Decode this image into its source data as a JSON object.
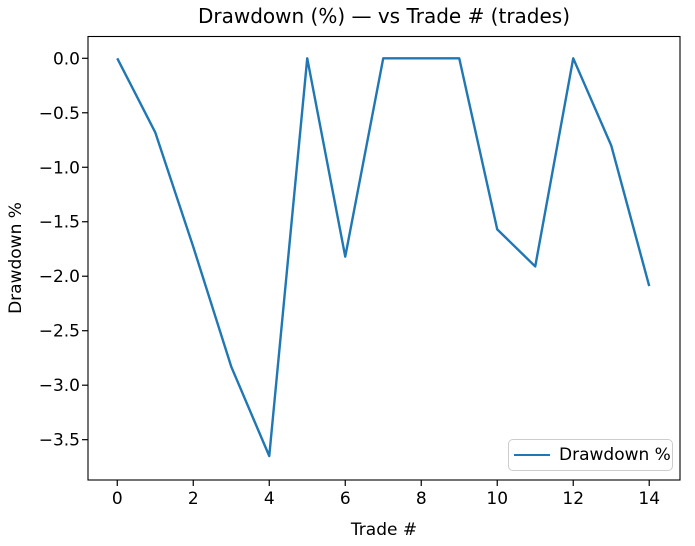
{
  "chart_data": {
    "type": "line",
    "title": "Drawdown (%) — vs Trade # (trades)",
    "xlabel": "Trade #",
    "ylabel": "Drawdown %",
    "x": [
      0,
      1,
      2,
      3,
      4,
      5,
      6,
      7,
      8,
      9,
      10,
      11,
      12,
      13,
      14
    ],
    "series": [
      {
        "name": "Drawdown %",
        "color": "#1f77b4",
        "values": [
          0.0,
          -0.68,
          -1.73,
          -2.83,
          -3.65,
          0.0,
          -1.82,
          0.0,
          0.0,
          0.0,
          -1.57,
          -1.91,
          0.0,
          -0.8,
          -2.09
        ]
      }
    ],
    "xticks": [
      0,
      2,
      4,
      6,
      8,
      10,
      12,
      14
    ],
    "yticks": [
      0,
      -0.5,
      -1,
      -1.5,
      -2,
      -2.5,
      -3,
      -3.5
    ],
    "xlim": [
      -0.77,
      14.81
    ],
    "ylim": [
      -3.87,
      0.2
    ],
    "grid": false,
    "legend": {
      "position": "lower right",
      "entries": [
        "Drawdown %"
      ]
    }
  },
  "colors": {
    "line": "#1f77b4",
    "axes": "#000000",
    "legend_border": "#cccccc",
    "background": "#ffffff"
  }
}
